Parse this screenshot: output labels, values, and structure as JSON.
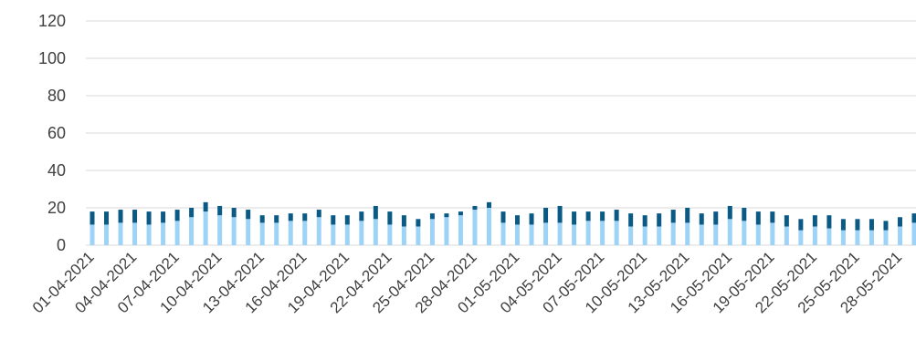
{
  "chart_data": {
    "type": "bar",
    "stacked": true,
    "ylim": [
      0,
      120
    ],
    "yticks": [
      0,
      20,
      40,
      60,
      80,
      100,
      120
    ],
    "grid": true,
    "legend": "none",
    "colors": {
      "light": "#9dd3f7",
      "dark": "#0a5a85",
      "grid": "#d9d9d9",
      "text": "#404040"
    },
    "categories": [
      "01-04-2021",
      "02-04-2021",
      "03-04-2021",
      "04-04-2021",
      "05-04-2021",
      "06-04-2021",
      "07-04-2021",
      "08-04-2021",
      "09-04-2021",
      "10-04-2021",
      "11-04-2021",
      "12-04-2021",
      "13-04-2021",
      "14-04-2021",
      "15-04-2021",
      "16-04-2021",
      "17-04-2021",
      "18-04-2021",
      "19-04-2021",
      "20-04-2021",
      "21-04-2021",
      "22-04-2021",
      "23-04-2021",
      "24-04-2021",
      "25-04-2021",
      "26-04-2021",
      "27-04-2021",
      "28-04-2021",
      "29-04-2021",
      "30-04-2021",
      "01-05-2021",
      "02-05-2021",
      "03-05-2021",
      "04-05-2021",
      "05-05-2021",
      "06-05-2021",
      "07-05-2021",
      "08-05-2021",
      "09-05-2021",
      "10-05-2021",
      "11-05-2021",
      "12-05-2021",
      "13-05-2021",
      "14-05-2021",
      "15-05-2021",
      "16-05-2021",
      "17-05-2021",
      "18-05-2021",
      "19-05-2021",
      "20-05-2021",
      "21-05-2021",
      "22-05-2021",
      "23-05-2021",
      "24-05-2021",
      "25-05-2021",
      "26-05-2021",
      "27-05-2021",
      "28-05-2021",
      "29-05-2021"
    ],
    "x_tick_labels": [
      "01-04-2021",
      "04-04-2021",
      "07-04-2021",
      "10-04-2021",
      "13-04-2021",
      "16-04-2021",
      "19-04-2021",
      "22-04-2021",
      "25-04-2021",
      "28-04-2021",
      "01-05-2021",
      "04-05-2021",
      "07-05-2021",
      "10-05-2021",
      "13-05-2021",
      "16-05-2021",
      "19-05-2021",
      "22-05-2021",
      "25-05-2021",
      "28-05-2021"
    ],
    "series": [
      {
        "values": [
          11,
          11,
          12,
          12,
          11,
          12,
          13,
          15,
          18,
          16,
          15,
          14,
          12,
          12,
          13,
          13,
          15,
          11,
          11,
          13,
          14,
          11,
          10,
          10,
          14,
          15,
          16,
          19,
          20,
          12,
          11,
          11,
          12,
          12,
          11,
          13,
          13,
          13,
          10,
          10,
          10,
          12,
          12,
          11,
          11,
          14,
          13,
          11,
          12,
          10,
          8,
          10,
          9,
          8,
          8,
          8,
          8,
          10,
          12
        ]
      },
      {
        "values": [
          7,
          7,
          7,
          7,
          7,
          6,
          6,
          5,
          5,
          5,
          5,
          5,
          4,
          4,
          4,
          4,
          4,
          5,
          5,
          5,
          7,
          7,
          6,
          4,
          3,
          2,
          2,
          2,
          3,
          6,
          5,
          6,
          8,
          9,
          7,
          5,
          5,
          6,
          7,
          6,
          7,
          7,
          8,
          6,
          7,
          7,
          7,
          7,
          6,
          6,
          6,
          6,
          7,
          6,
          6,
          6,
          5,
          5,
          5
        ]
      }
    ]
  }
}
